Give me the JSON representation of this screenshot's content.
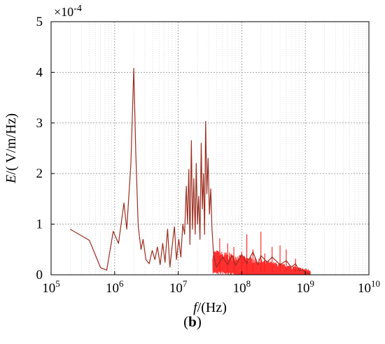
{
  "chart_data": {
    "type": "line",
    "x_scale": "log",
    "xlim": [
      100000,
      10000000000
    ],
    "ylim": [
      0,
      5
    ],
    "y_multiplier_label": "×10",
    "y_multiplier_exp": "-4",
    "xlabel_var": "f",
    "xlabel_unit": "/(Hz)",
    "ylabel_var": "E",
    "ylabel_unit": "/( V/m/Hz)",
    "x_ticks": [
      {
        "value": 100000,
        "base": "10",
        "exp": "5"
      },
      {
        "value": 1000000,
        "base": "10",
        "exp": "6"
      },
      {
        "value": 10000000,
        "base": "10",
        "exp": "7"
      },
      {
        "value": 100000000,
        "base": "10",
        "exp": "8"
      },
      {
        "value": 1000000000,
        "base": "10",
        "exp": "9"
      },
      {
        "value": 10000000000,
        "base": "10",
        "exp": "10"
      }
    ],
    "y_ticks": [
      "0",
      "1",
      "2",
      "3",
      "4",
      "5"
    ],
    "grid": true,
    "series": [
      {
        "color": "#9b2d1f",
        "noise_color": "#ff1a1a",
        "points": [
          [
            200000,
            0.9
          ],
          [
            400000,
            0.68
          ],
          [
            600000,
            0.14
          ],
          [
            750000,
            0.09
          ],
          [
            950000,
            0.86
          ],
          [
            1150000,
            0.62
          ],
          [
            1400000,
            1.42
          ],
          [
            1550000,
            0.9
          ],
          [
            1800000,
            2.2
          ],
          [
            2000000,
            4.08
          ],
          [
            2150000,
            2.4
          ],
          [
            2350000,
            0.95
          ],
          [
            2600000,
            0.5
          ],
          [
            2800000,
            0.7
          ],
          [
            3100000,
            0.3
          ],
          [
            3500000,
            0.22
          ],
          [
            3900000,
            0.48
          ],
          [
            4300000,
            0.3
          ],
          [
            4700000,
            0.55
          ],
          [
            5200000,
            0.2
          ],
          [
            5700000,
            0.62
          ],
          [
            6200000,
            0.25
          ],
          [
            6800000,
            0.9
          ],
          [
            7400000,
            0.15
          ],
          [
            8000000,
            0.55
          ],
          [
            8700000,
            0.95
          ],
          [
            9400000,
            0.3
          ],
          [
            10200000,
            0.7
          ],
          [
            11000000,
            0.35
          ],
          [
            11800000,
            1.0
          ],
          [
            12600000,
            0.8
          ],
          [
            13400000,
            1.75
          ],
          [
            14000000,
            1.0
          ],
          [
            14700000,
            2.08
          ],
          [
            15300000,
            0.6
          ],
          [
            16100000,
            2.65
          ],
          [
            16800000,
            0.9
          ],
          [
            17600000,
            1.9
          ],
          [
            18500000,
            0.8
          ],
          [
            19200000,
            2.2
          ],
          [
            20100000,
            1.0
          ],
          [
            21000000,
            1.55
          ],
          [
            22000000,
            0.7
          ],
          [
            23000000,
            2.6
          ],
          [
            24000000,
            1.3
          ],
          [
            25000000,
            2.0
          ],
          [
            26000000,
            0.8
          ],
          [
            27000000,
            3.03
          ],
          [
            28200000,
            1.6
          ],
          [
            29500000,
            2.3
          ],
          [
            31000000,
            1.2
          ],
          [
            32500000,
            1.7
          ],
          [
            34000000,
            0.9
          ],
          [
            36000000,
            0.4
          ],
          [
            40000000,
            0.15
          ],
          [
            50000000,
            0.35
          ],
          [
            60000000,
            0.2
          ],
          [
            70000000,
            0.38
          ],
          [
            80000000,
            0.18
          ],
          [
            100000000,
            0.4
          ],
          [
            120000000,
            0.22
          ],
          [
            150000000,
            0.45
          ],
          [
            180000000,
            0.2
          ],
          [
            200000000,
            0.38
          ],
          [
            250000000,
            0.25
          ],
          [
            300000000,
            0.35
          ],
          [
            400000000,
            0.2
          ],
          [
            500000000,
            0.28
          ],
          [
            600000000,
            0.15
          ],
          [
            700000000,
            0.22
          ],
          [
            800000000,
            0.08
          ],
          [
            900000000,
            0.1
          ],
          [
            1000000000,
            0.04
          ],
          [
            1200000000,
            0.02
          ]
        ],
        "noise_range": [
          35000000,
          1200000000
        ],
        "noise_spikes": [
          [
            45000000,
            0.72
          ],
          [
            60000000,
            0.62
          ],
          [
            75000000,
            0.55
          ],
          [
            100000000,
            0.45
          ],
          [
            120000000,
            0.8
          ],
          [
            150000000,
            0.5
          ],
          [
            200000000,
            0.85
          ],
          [
            230000000,
            0.42
          ],
          [
            300000000,
            0.55
          ],
          [
            400000000,
            0.58
          ],
          [
            500000000,
            0.5
          ],
          [
            700000000,
            0.32
          ]
        ]
      }
    ]
  },
  "caption": {
    "open": "(",
    "label": "b",
    "close": ")"
  }
}
